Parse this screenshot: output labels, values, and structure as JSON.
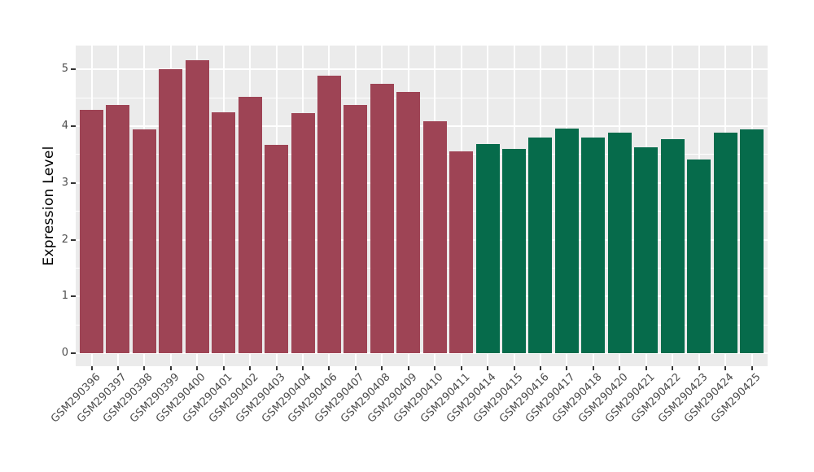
{
  "chart_data": {
    "type": "bar",
    "title": "",
    "xlabel": "",
    "ylabel": "Expression Level",
    "ylim": [
      0,
      5.42
    ],
    "yticks": [
      0,
      1,
      2,
      3,
      4,
      5
    ],
    "yticks_minor": [
      0.5,
      1.5,
      2.5,
      3.5,
      4.5
    ],
    "grid": "horizontal major+minor white lines, vertical white line at each category, on gray panel",
    "legend_position": "none",
    "categories": [
      "GSM290396",
      "GSM290397",
      "GSM290398",
      "GSM290399",
      "GSM290400",
      "GSM290401",
      "GSM290402",
      "GSM290403",
      "GSM290404",
      "GSM290406",
      "GSM290407",
      "GSM290408",
      "GSM290409",
      "GSM290410",
      "GSM290411",
      "GSM290414",
      "GSM290415",
      "GSM290416",
      "GSM290417",
      "GSM290418",
      "GSM290420",
      "GSM290421",
      "GSM290422",
      "GSM290423",
      "GSM290424",
      "GSM290425"
    ],
    "values": [
      4.29,
      4.37,
      3.94,
      5.0,
      5.16,
      4.25,
      4.51,
      3.67,
      4.23,
      4.89,
      4.38,
      4.75,
      4.6,
      4.09,
      3.56,
      3.69,
      3.6,
      3.8,
      3.96,
      3.8,
      3.88,
      3.63,
      3.77,
      3.41,
      3.89,
      3.94
    ],
    "bar_groups": [
      "maroon",
      "maroon",
      "maroon",
      "maroon",
      "maroon",
      "maroon",
      "maroon",
      "maroon",
      "maroon",
      "maroon",
      "maroon",
      "maroon",
      "maroon",
      "maroon",
      "maroon",
      "green",
      "green",
      "green",
      "green",
      "green",
      "green",
      "green",
      "green",
      "green",
      "green",
      "green"
    ],
    "colors": {
      "maroon": "#9E4455",
      "green": "#066B4B",
      "panel_background": "#EBEBEB",
      "gridline": "#FFFFFF",
      "tick": "#333333",
      "axis_text": "#4D4D4D",
      "axis_title": "#000000",
      "page_background": "#FFFFFF"
    }
  }
}
